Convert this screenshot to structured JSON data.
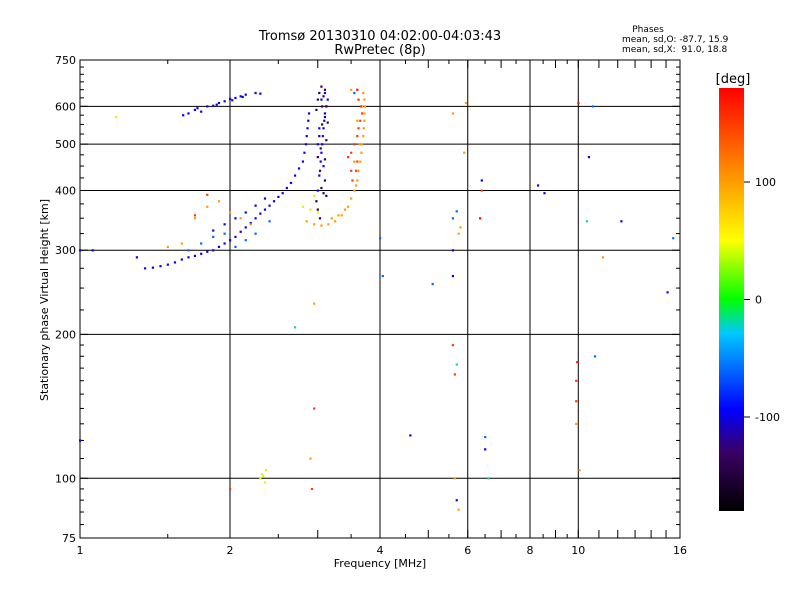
{
  "chart_data": {
    "type": "scatter",
    "title": "Tromsø 20130310 04:02:00-04:03:43",
    "subtitle": "RwPretec (8p)",
    "xlabel": "Frequency [MHz]",
    "ylabel": "Stationary phase Virtual Height [km]",
    "xscale": "log",
    "yscale": "log",
    "xlim": [
      1,
      16
    ],
    "ylim": [
      75,
      750
    ],
    "xticks": [
      1,
      2,
      4,
      6,
      8,
      10,
      16
    ],
    "yticks": [
      75,
      100,
      200,
      300,
      400,
      500,
      600,
      750
    ],
    "grid": true,
    "phases_box": {
      "title": "Phases",
      "line_o": "mean, sd,O: -87.7, 15.9",
      "line_x": "mean, sd,X:  91.0, 18.8"
    },
    "colorbar": {
      "label": "[deg]",
      "range": [
        -180,
        180
      ],
      "ticks": [
        100,
        0,
        -100
      ],
      "colors": [
        "#000000",
        "#3a0066",
        "#0000ff",
        "#00c8ff",
        "#00ff00",
        "#ffff00",
        "#ff8000",
        "#ff0000"
      ]
    },
    "series": [
      {
        "phase": -100,
        "points": [
          [
            1.61,
            575
          ],
          [
            1.65,
            580
          ],
          [
            1.7,
            590
          ],
          [
            1.75,
            585
          ],
          [
            1.8,
            600
          ],
          [
            1.85,
            602
          ],
          [
            1.9,
            610
          ],
          [
            1.95,
            615
          ],
          [
            2.0,
            622
          ],
          [
            2.05,
            625
          ],
          [
            2.1,
            630
          ],
          [
            2.15,
            635
          ],
          [
            2.25,
            640
          ],
          [
            2.3,
            638
          ],
          [
            1.72,
            595
          ],
          [
            1.88,
            605
          ],
          [
            2.02,
            618
          ],
          [
            2.12,
            628
          ],
          [
            1.35,
            275
          ],
          [
            1.4,
            276
          ],
          [
            1.45,
            278
          ],
          [
            1.5,
            280
          ],
          [
            1.55,
            283
          ],
          [
            1.6,
            287
          ],
          [
            1.65,
            290
          ],
          [
            1.7,
            292
          ],
          [
            1.75,
            295
          ],
          [
            1.8,
            298
          ],
          [
            1.85,
            300
          ],
          [
            1.9,
            305
          ],
          [
            1.95,
            310
          ],
          [
            2.0,
            315
          ],
          [
            2.05,
            320
          ],
          [
            2.1,
            328
          ],
          [
            2.15,
            335
          ],
          [
            2.2,
            342
          ],
          [
            2.25,
            350
          ],
          [
            2.3,
            358
          ],
          [
            2.35,
            365
          ],
          [
            2.4,
            372
          ],
          [
            2.45,
            380
          ],
          [
            2.5,
            388
          ],
          [
            2.55,
            395
          ],
          [
            2.6,
            405
          ],
          [
            2.65,
            415
          ],
          [
            2.7,
            430
          ],
          [
            2.75,
            445
          ],
          [
            2.8,
            460
          ],
          [
            2.82,
            480
          ],
          [
            2.84,
            500
          ],
          [
            2.85,
            520
          ],
          [
            2.86,
            540
          ],
          [
            2.87,
            560
          ],
          [
            2.88,
            580
          ],
          [
            1.85,
            330
          ],
          [
            1.95,
            340
          ],
          [
            2.05,
            350
          ],
          [
            2.15,
            360
          ],
          [
            2.25,
            372
          ],
          [
            2.35,
            385
          ],
          [
            3.0,
            400
          ],
          [
            3.02,
            430
          ],
          [
            3.04,
            460
          ],
          [
            3.05,
            480
          ],
          [
            3.06,
            500
          ],
          [
            3.07,
            520
          ],
          [
            3.08,
            540
          ],
          [
            3.09,
            560
          ],
          [
            3.1,
            580
          ],
          [
            3.12,
            600
          ],
          [
            3.14,
            620
          ],
          [
            3.1,
            640
          ],
          [
            3.05,
            620
          ],
          [
            3.02,
            540
          ],
          [
            3.0,
            500
          ],
          [
            3.08,
            450
          ],
          [
            1.0,
            300
          ],
          [
            1.06,
            300
          ],
          [
            1.3,
            290
          ],
          [
            1.0,
            120
          ],
          [
            4.6,
            123
          ],
          [
            5.6,
            265
          ],
          [
            5.6,
            300
          ],
          [
            6.4,
            420
          ],
          [
            6.5,
            115
          ],
          [
            8.3,
            410
          ],
          [
            8.55,
            395
          ],
          [
            10.5,
            470
          ],
          [
            12.2,
            345
          ],
          [
            15.1,
            245
          ],
          [
            5.7,
            90
          ]
        ]
      },
      {
        "phase": -140,
        "points": [
          [
            3.05,
            660
          ],
          [
            3.1,
            650
          ],
          [
            3.08,
            630
          ],
          [
            3.12,
            600
          ],
          [
            3.1,
            570
          ],
          [
            3.06,
            550
          ],
          [
            3.02,
            520
          ],
          [
            3.04,
            490
          ],
          [
            3.0,
            470
          ],
          [
            3.03,
            440
          ],
          [
            3.1,
            420
          ],
          [
            3.05,
            405
          ],
          [
            3.12,
            390
          ],
          [
            2.98,
            380
          ],
          [
            3.0,
            365
          ],
          [
            3.03,
            350
          ],
          [
            3.08,
            395
          ],
          [
            3.1,
            465
          ],
          [
            3.12,
            510
          ],
          [
            3.14,
            555
          ],
          [
            3.0,
            620
          ],
          [
            2.98,
            590
          ],
          [
            3.06,
            600
          ],
          [
            3.02,
            640
          ]
        ]
      },
      {
        "phase": -60,
        "points": [
          [
            1.65,
            300
          ],
          [
            1.75,
            310
          ],
          [
            1.85,
            320
          ],
          [
            2.05,
            305
          ],
          [
            2.15,
            315
          ],
          [
            2.25,
            325
          ],
          [
            2.4,
            345
          ],
          [
            1.95,
            325
          ],
          [
            3.55,
            640
          ],
          [
            10.7,
            600
          ],
          [
            15.5,
            318
          ],
          [
            10.8,
            180
          ],
          [
            6.5,
            122
          ],
          [
            5.6,
            350
          ],
          [
            5.7,
            362
          ],
          [
            4.0,
            318
          ],
          [
            4.05,
            265
          ],
          [
            5.1,
            255
          ]
        ]
      },
      {
        "phase": -20,
        "points": [
          [
            2.7,
            207
          ],
          [
            5.7,
            173
          ],
          [
            6.6,
            100
          ],
          [
            10.4,
            345
          ]
        ]
      },
      {
        "phase": 40,
        "points": [
          [
            1.18,
            570
          ],
          [
            2.3,
            100
          ],
          [
            2.33,
            101
          ],
          [
            2.35,
            98
          ],
          [
            2.32,
            102
          ],
          [
            2.36,
            104
          ],
          [
            2.8,
            370
          ],
          [
            2.9,
            365
          ],
          [
            2.95,
            390
          ],
          [
            3.0,
            360
          ]
        ]
      },
      {
        "phase": 100,
        "points": [
          [
            2.85,
            345
          ],
          [
            2.95,
            340
          ],
          [
            3.05,
            338
          ],
          [
            3.15,
            340
          ],
          [
            3.25,
            345
          ],
          [
            3.35,
            355
          ],
          [
            3.45,
            370
          ],
          [
            3.5,
            385
          ],
          [
            3.55,
            400
          ],
          [
            3.6,
            420
          ],
          [
            3.62,
            440
          ],
          [
            3.65,
            460
          ],
          [
            3.67,
            480
          ],
          [
            3.68,
            500
          ],
          [
            3.7,
            520
          ],
          [
            3.71,
            540
          ],
          [
            3.72,
            560
          ],
          [
            3.72,
            580
          ],
          [
            3.73,
            600
          ],
          [
            3.72,
            620
          ],
          [
            3.7,
            640
          ],
          [
            3.5,
            650
          ],
          [
            3.3,
            355
          ],
          [
            3.2,
            350
          ],
          [
            3.4,
            365
          ],
          [
            3.58,
            410
          ],
          [
            3.64,
            500
          ],
          [
            3.68,
            600
          ],
          [
            1.7,
            350
          ],
          [
            1.8,
            370
          ],
          [
            1.9,
            380
          ],
          [
            2.0,
            360
          ],
          [
            2.1,
            350
          ],
          [
            2.2,
            340
          ],
          [
            1.6,
            310
          ],
          [
            3.55,
            460
          ],
          [
            3.6,
            560
          ],
          [
            3.62,
            620
          ],
          [
            2.95,
            232
          ],
          [
            5.6,
            580
          ],
          [
            5.75,
            325
          ],
          [
            5.8,
            335
          ],
          [
            5.9,
            480
          ],
          [
            5.95,
            610
          ],
          [
            9.9,
            130
          ],
          [
            10.05,
            104
          ],
          [
            11.2,
            290
          ],
          [
            2.9,
            110
          ],
          [
            5.65,
            100
          ],
          [
            5.75,
            86
          ],
          [
            1.5,
            305
          ]
        ]
      },
      {
        "phase": 150,
        "points": [
          [
            3.45,
            470
          ],
          [
            3.5,
            480
          ],
          [
            3.55,
            500
          ],
          [
            3.6,
            520
          ],
          [
            3.62,
            540
          ],
          [
            3.65,
            560
          ],
          [
            3.68,
            580
          ],
          [
            3.66,
            600
          ],
          [
            3.62,
            620
          ],
          [
            3.5,
            440
          ],
          [
            3.52,
            420
          ],
          [
            3.58,
            440
          ],
          [
            3.6,
            460
          ],
          [
            2.95,
            140
          ],
          [
            2.92,
            95
          ],
          [
            5.6,
            190
          ],
          [
            5.65,
            165
          ],
          [
            6.4,
            400
          ],
          [
            9.9,
            160
          ],
          [
            9.9,
            145
          ],
          [
            2.0,
            95
          ],
          [
            1.7,
            355
          ],
          [
            1.8,
            392
          ]
        ]
      },
      {
        "phase": 175,
        "points": [
          [
            10.0,
            610
          ],
          [
            9.95,
            175
          ],
          [
            6.35,
            350
          ],
          [
            3.6,
            650
          ]
        ]
      }
    ]
  }
}
